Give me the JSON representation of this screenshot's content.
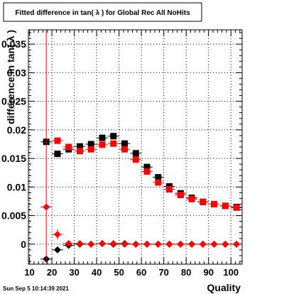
{
  "chart_data": {
    "type": "scatter",
    "title": "Fitted difference in tan( λ ) for Global Rec All NoHits",
    "xlabel": "Quality",
    "ylabel": "difference in tan( λ )",
    "xlim": [
      9.5,
      105
    ],
    "ylim": [
      -0.0035,
      0.0375
    ],
    "x_ticks": [
      10,
      20,
      30,
      40,
      50,
      60,
      70,
      80,
      90,
      100
    ],
    "y_ticks": [
      {
        "value": 0,
        "label": "0"
      },
      {
        "value": 0.005,
        "label": "0.005"
      },
      {
        "value": 0.01,
        "label": "0.01"
      },
      {
        "value": 0.015,
        "label": "0.015"
      },
      {
        "value": 0.02,
        "label": "0.02"
      },
      {
        "value": 0.025,
        "label": "0.025"
      },
      {
        "value": 0.03,
        "label": "0.03"
      },
      {
        "value": 0.035,
        "label": "0.035"
      }
    ],
    "grid": true,
    "series": [
      {
        "marker": "square",
        "color": "#000000",
        "x": [
          17.5,
          22.5,
          27.5,
          32.5,
          37.5,
          42.5,
          47.5,
          52.5,
          57.5,
          62.5,
          67.5,
          72.5,
          77.5,
          82.5,
          87.5,
          92.5,
          97.5,
          102.5
        ],
        "y": [
          0.0179,
          0.0158,
          0.0166,
          0.0171,
          0.0175,
          0.0186,
          0.0189,
          0.0176,
          0.0159,
          0.0135,
          0.0117,
          0.0101,
          0.0089,
          0.0081,
          0.0074,
          0.007,
          0.0067,
          0.0065
        ]
      },
      {
        "marker": "square",
        "color": "#ff0000",
        "x": [
          22.5,
          27.5,
          32.5,
          37.5,
          42.5,
          47.5,
          52.5,
          57.5,
          62.5,
          67.5,
          72.5,
          77.5,
          82.5,
          87.5,
          92.5,
          97.5,
          102.5
        ],
        "y": [
          0.0181,
          0.017,
          0.0163,
          0.0166,
          0.0174,
          0.0176,
          0.0166,
          0.0148,
          0.0127,
          0.0108,
          0.0096,
          0.0086,
          0.0079,
          0.0074,
          0.007,
          0.0067,
          0.0064
        ]
      },
      {
        "marker": "diamond",
        "color": "#000000",
        "x": [
          17.5,
          22.5,
          27.5,
          32.5,
          37.5,
          42.5,
          47.5,
          52.5,
          57.5,
          62.5,
          67.5,
          72.5,
          77.5,
          82.5,
          87.5,
          92.5,
          97.5,
          102.5
        ],
        "y": [
          -0.0026,
          -0.001,
          -0.0002,
          0.0,
          0.0,
          0.0001,
          0.0,
          0.0001,
          0.0,
          0.0,
          0.0,
          0.0,
          0.0,
          0.0,
          0.0,
          0.0,
          0.0,
          0.0
        ]
      },
      {
        "marker": "diamond",
        "color": "#ff0000",
        "x": [
          17.5,
          22.5,
          27.5,
          32.5,
          37.5,
          42.5,
          47.5,
          52.5,
          57.5,
          62.5,
          67.5,
          72.5,
          77.5,
          82.5,
          87.5,
          92.5,
          97.5,
          102.5
        ],
        "y": [
          0.0065,
          0.0017,
          0.0001,
          0.0001,
          0.0,
          0.0001,
          0.0001,
          0.0,
          0.0,
          0.0,
          0.0,
          0.0,
          0.0,
          0.0,
          0.0,
          0.0,
          0.0,
          0.0
        ],
        "y_errors": [
          0.031,
          0.0009,
          0.0003,
          0.0002,
          0.0001,
          0.0001,
          0.0001,
          0.0001,
          0.0001,
          0.0001,
          0.0001,
          0.0001,
          0.0001,
          0.0001,
          0.0001,
          0.0001,
          0.0001,
          0.0001
        ]
      }
    ]
  },
  "footer": {
    "timestamp": "Sun Sep  5 10:14:39 2021"
  }
}
